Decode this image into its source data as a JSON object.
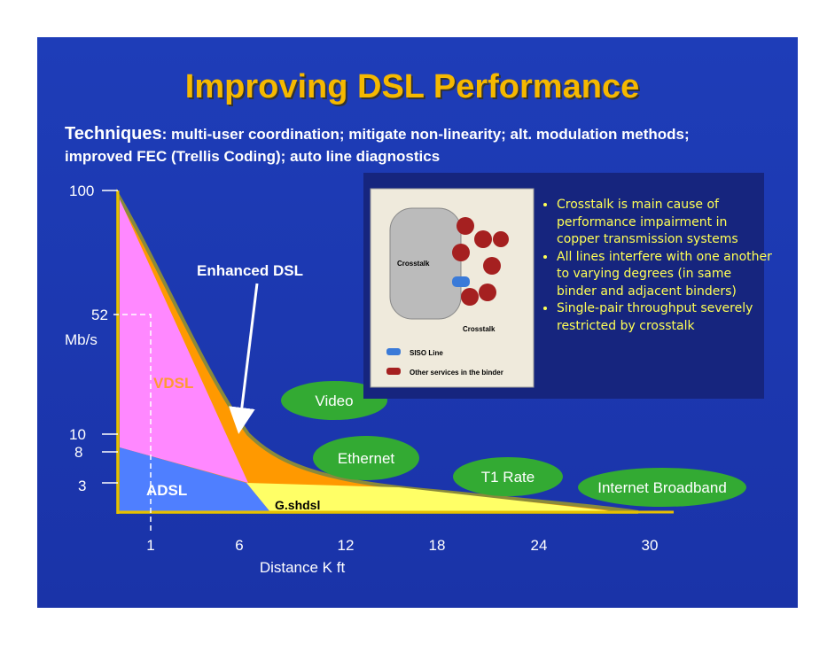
{
  "title": "Improving DSL Performance",
  "techniques": {
    "label": "Techniques",
    "text": ": multi-user coordination; mitigate non-linearity; alt. modulation methods; improved FEC (Trellis Coding); auto line diagnostics"
  },
  "y_axis": {
    "labels": [
      "100",
      "52",
      "Mb/s",
      "10",
      "8",
      "3"
    ]
  },
  "x_axis": {
    "labels": [
      "1",
      "6",
      "12",
      "18",
      "24",
      "30"
    ],
    "title": "Distance K ft"
  },
  "regions": [
    "Enhanced DSL",
    "VDSL",
    "ADSL",
    "G.shdsl"
  ],
  "applications": [
    "Video",
    "Ethernet",
    "T1 Rate",
    "Internet Broadband"
  ],
  "inset": {
    "labels": [
      "Crosstalk",
      "Crosstalk",
      "SISO Line",
      "Other services in the binder"
    ],
    "bullets": [
      "Crosstalk is main cause of performance impairment in copper transmission systems",
      "All lines interfere with one another to varying degrees (in same binder and adjacent binders)",
      "Single-pair throughput severely restricted by crosstalk"
    ]
  }
}
